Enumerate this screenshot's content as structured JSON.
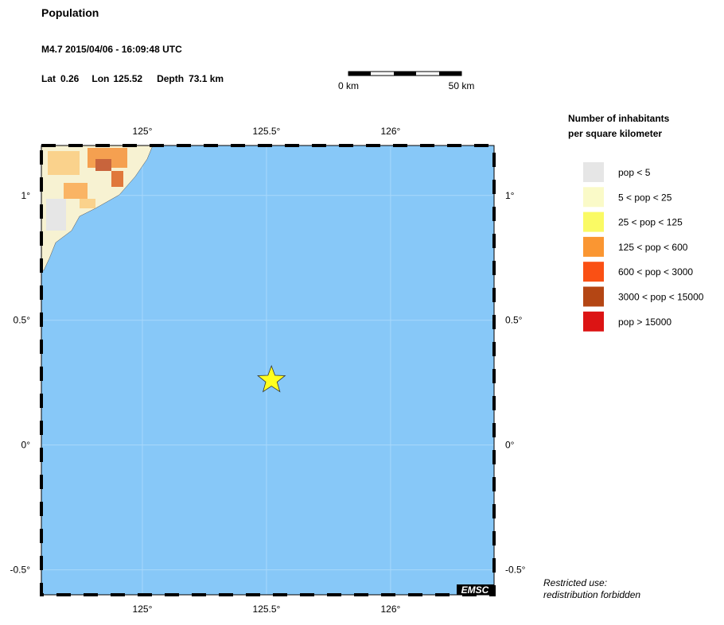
{
  "header": {
    "title": "Population",
    "event": "M4.7  2015/04/06 - 16:09:48 UTC",
    "lat_label": "Lat",
    "lat": 0.26,
    "lon_label": "Lon",
    "lon": 125.52,
    "depth_label": "Depth",
    "depth": "73.1 km"
  },
  "scale": {
    "start": "0 km",
    "end": "50 km"
  },
  "map": {
    "xlim": [
      124.593,
      126.417
    ],
    "ylim": [
      -0.6,
      1.2
    ],
    "xticks": [
      {
        "value": 125,
        "label": "125°"
      },
      {
        "value": 125.5,
        "label": "125.5°"
      },
      {
        "value": 126,
        "label": "126°"
      }
    ],
    "yticks": [
      {
        "value": 1,
        "label": "1°"
      },
      {
        "value": 0.5,
        "label": "0.5°"
      },
      {
        "value": 0,
        "label": "0°"
      },
      {
        "value": -0.5,
        "label": "-0.5°"
      }
    ],
    "credit": "EMSC"
  },
  "legend": {
    "title": [
      "Number of inhabitants",
      "per square kilometer"
    ],
    "items": [
      {
        "label": "pop < 5",
        "color": "#e6e6e6"
      },
      {
        "label": "5 < pop < 25",
        "color": "#fafac8"
      },
      {
        "label": "25 < pop < 125",
        "color": "#fafa64"
      },
      {
        "label": "125 < pop < 600",
        "color": "#fa9632"
      },
      {
        "label": "600 < pop < 3000",
        "color": "#fa5014"
      },
      {
        "label": "3000 < pop < 15000",
        "color": "#b44614"
      },
      {
        "label": "pop > 15000",
        "color": "#dc1414"
      }
    ]
  },
  "footer": [
    "Restricted use:",
    "redistribution forbidden"
  ]
}
